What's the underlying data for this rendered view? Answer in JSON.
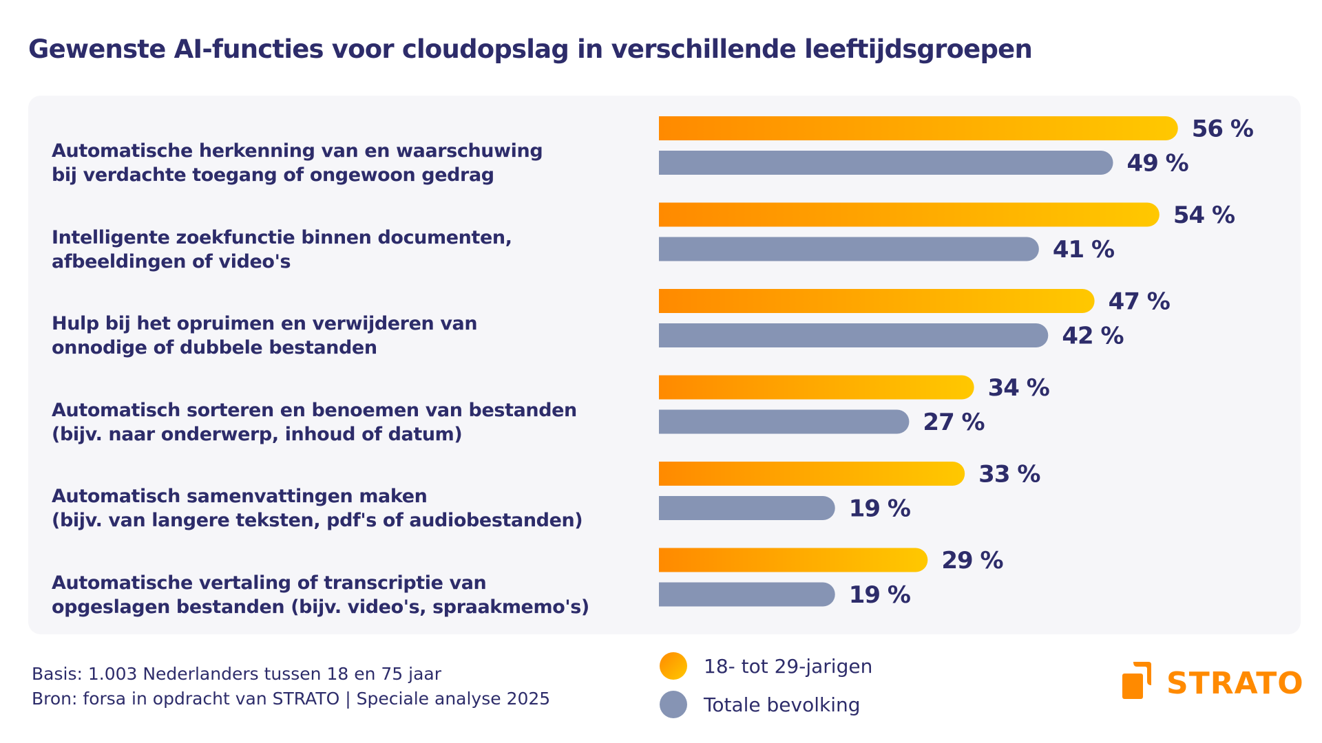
{
  "chart_data": {
    "type": "bar",
    "orientation": "horizontal",
    "title": "Gewenste AI-functies voor cloudopslag in verschillende leeftijdsgroepen",
    "categories": [
      [
        "Automatische herkenning van en waarschuwing",
        "bij verdachte toegang of ongewoon gedrag"
      ],
      [
        "Intelligente zoekfunctie binnen documenten,",
        "afbeeldingen of video's"
      ],
      [
        "Hulp bij het opruimen en verwijderen van",
        "onnodige of dubbele bestanden"
      ],
      [
        "Automatisch sorteren en benoemen van bestanden",
        "(bijv. naar onderwerp, inhoud of datum)"
      ],
      [
        "Automatisch samenvattingen maken",
        "(bijv. van langere teksten, pdf's of audiobestanden)"
      ],
      [
        "Automatische vertaling of transcriptie van",
        "opgeslagen bestanden (bijv. video's, spraakmemo's)"
      ]
    ],
    "series": [
      {
        "name": "18- tot 29-jarigen",
        "values": [
          56,
          54,
          47,
          34,
          33,
          29
        ],
        "color_start": "#ff8a00",
        "color_end": "#ffc800"
      },
      {
        "name": "Totale bevolking",
        "values": [
          49,
          41,
          42,
          27,
          19,
          19
        ],
        "color": "#8694b4"
      }
    ],
    "value_suffix": " %",
    "grid": false,
    "legend_position": "bottom-center"
  },
  "footer": {
    "basis": "Basis: 1.003 Nederlanders tussen 18 en 75 jaar",
    "source": "Bron: forsa in opdracht van STRATO | Speciale analyse 2025"
  },
  "logo": {
    "text": "STRATO",
    "color": "#ff8a00"
  },
  "colors": {
    "text": "#2d2c6a",
    "panel": "#f6f6f9"
  }
}
